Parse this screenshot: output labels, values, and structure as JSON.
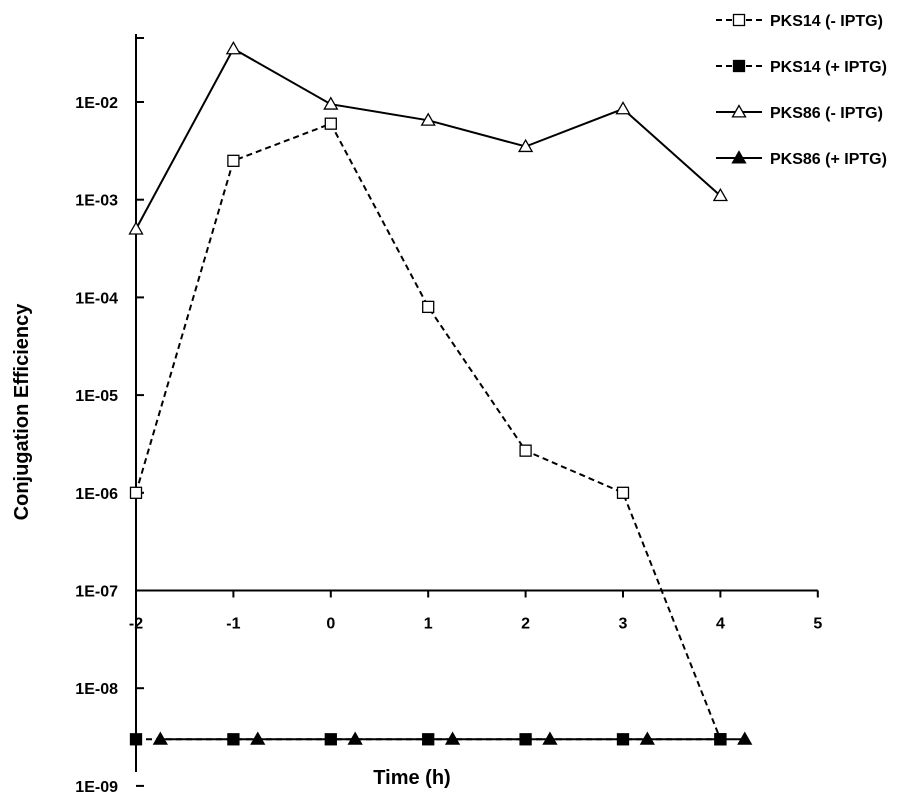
{
  "chart_data": {
    "type": "line",
    "xlabel": "Time (h)",
    "ylabel": "Conjugation Efficiency",
    "y_scale": "log",
    "ylim": [
      1e-09,
      0.1
    ],
    "xlim": [
      -2,
      5
    ],
    "x_ticks": [
      -2,
      -1,
      0,
      1,
      2,
      3,
      4,
      5
    ],
    "x_tick_labels": [
      "-2",
      "-1",
      "0",
      "1",
      "2",
      "3",
      "4",
      "5"
    ],
    "y_ticks": [
      1e-09,
      1e-08,
      1e-07,
      1e-06,
      1e-05,
      0.0001,
      0.001,
      0.01
    ],
    "y_tick_labels": [
      "1E-09",
      "1E-08",
      "1E-07",
      "1E-06",
      "1E-05",
      "1E-04",
      "1E-03",
      "1E-02"
    ],
    "x_axis_crosses_at": 1e-07,
    "grid": false,
    "legend_position": "top-right",
    "series": [
      {
        "name": "PKS14 (- IPTG)",
        "line_style": "dashed",
        "marker": "open-square",
        "x": [
          -2,
          -1,
          0,
          1,
          2,
          3,
          4
        ],
        "y": [
          1e-06,
          0.0025,
          0.006,
          8e-05,
          2.7e-06,
          1e-06,
          3e-09
        ]
      },
      {
        "name": "PKS14 (+ IPTG)",
        "line_style": "dashed",
        "marker": "filled-square",
        "x": [
          -2,
          -1,
          0,
          1,
          2,
          3,
          4
        ],
        "y": [
          3e-09,
          3e-09,
          3e-09,
          3e-09,
          3e-09,
          3e-09,
          3e-09
        ]
      },
      {
        "name": "PKS86 (- IPTG)",
        "line_style": "solid",
        "marker": "open-triangle",
        "x": [
          -2,
          -1,
          0,
          1,
          2,
          3,
          4
        ],
        "y": [
          0.0005,
          0.035,
          0.0095,
          0.0065,
          0.0035,
          0.0085,
          0.0011
        ]
      },
      {
        "name": "PKS86 (+ IPTG)",
        "line_style": "solid",
        "marker": "filled-triangle",
        "x": [
          -1.75,
          -0.75,
          0.25,
          1.25,
          2.25,
          3.25,
          4.25
        ],
        "y": [
          3e-09,
          3e-09,
          3e-09,
          3e-09,
          3e-09,
          3e-09,
          3e-09
        ]
      }
    ]
  },
  "colors": {
    "line": "#000000",
    "background": "#ffffff"
  }
}
